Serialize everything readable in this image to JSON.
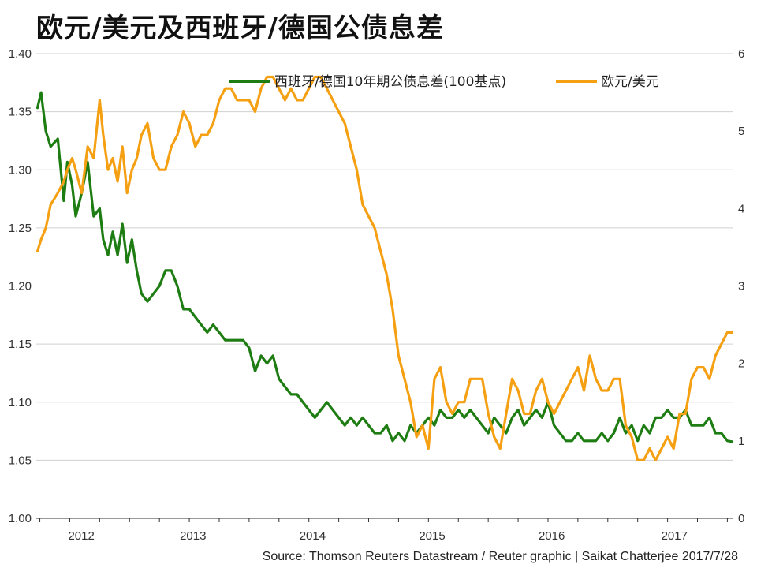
{
  "title": "欧元/美元及西班牙/德国公债息差",
  "source": "Source: Thomson Reuters Datastream / Reuter graphic | Saikat Chatterjee 2017/7/28",
  "colors": {
    "spread": "#1e7d12",
    "eurusd": "#f5a012",
    "grid": "#d0d0d0",
    "axis": "#333333"
  },
  "chart_data": {
    "type": "line",
    "title": "欧元/美元及西班牙/德国公债息差",
    "xlim": [
      2011.72,
      2017.55
    ],
    "x_tick_labels": [
      {
        "label": "2012",
        "x": 2012.0
      },
      {
        "label": "2013",
        "x": 2013.0
      },
      {
        "label": "2014",
        "x": 2014.0
      },
      {
        "label": "2015",
        "x": 2015.0
      },
      {
        "label": "2016",
        "x": 2016.0
      },
      {
        "label": "2017",
        "x": 2017.0
      }
    ],
    "y_left": {
      "range": [
        1.0,
        1.4
      ],
      "ticks": [
        "1.00",
        "1.05",
        "1.10",
        "1.15",
        "1.20",
        "1.25",
        "1.30",
        "1.35",
        "1.40"
      ]
    },
    "y_right": {
      "range": [
        0,
        6
      ],
      "ticks": [
        "0",
        "1",
        "2",
        "3",
        "4",
        "5",
        "6"
      ]
    },
    "grid": "horizontal",
    "legend_position": "top",
    "series": [
      {
        "name": "西班牙/德国10年期公债息差(100基点)",
        "axis": "right",
        "color": "#1e7d12",
        "x": [
          2011.73,
          2011.76,
          2011.8,
          2011.84,
          2011.9,
          2011.95,
          2011.98,
          2012.02,
          2012.05,
          2012.1,
          2012.15,
          2012.2,
          2012.25,
          2012.28,
          2012.32,
          2012.36,
          2012.4,
          2012.44,
          2012.48,
          2012.52,
          2012.56,
          2012.6,
          2012.65,
          2012.7,
          2012.75,
          2012.8,
          2012.85,
          2012.9,
          2012.95,
          2013.0,
          2013.05,
          2013.1,
          2013.15,
          2013.2,
          2013.25,
          2013.3,
          2013.35,
          2013.4,
          2013.45,
          2013.5,
          2013.55,
          2013.6,
          2013.65,
          2013.7,
          2013.75,
          2013.8,
          2013.85,
          2013.9,
          2013.95,
          2014.0,
          2014.05,
          2014.1,
          2014.15,
          2014.2,
          2014.25,
          2014.3,
          2014.35,
          2014.4,
          2014.45,
          2014.5,
          2014.55,
          2014.6,
          2014.65,
          2014.7,
          2014.75,
          2014.8,
          2014.85,
          2014.9,
          2014.95,
          2015.0,
          2015.05,
          2015.1,
          2015.15,
          2015.2,
          2015.25,
          2015.3,
          2015.35,
          2015.4,
          2015.45,
          2015.5,
          2015.55,
          2015.6,
          2015.65,
          2015.7,
          2015.75,
          2015.8,
          2015.85,
          2015.9,
          2015.95,
          2016.0,
          2016.05,
          2016.1,
          2016.15,
          2016.2,
          2016.25,
          2016.3,
          2016.35,
          2016.4,
          2016.45,
          2016.5,
          2016.55,
          2016.6,
          2016.65,
          2016.7,
          2016.75,
          2016.8,
          2016.85,
          2016.9,
          2016.95,
          2017.0,
          2017.05,
          2017.1,
          2017.15,
          2017.2,
          2017.25,
          2017.3,
          2017.35,
          2017.4,
          2017.45,
          2017.5,
          2017.54
        ],
        "values": [
          5.3,
          5.5,
          5.0,
          4.8,
          4.9,
          4.1,
          4.6,
          4.3,
          3.9,
          4.2,
          4.6,
          3.9,
          4.0,
          3.6,
          3.4,
          3.7,
          3.4,
          3.8,
          3.3,
          3.6,
          3.2,
          2.9,
          2.8,
          2.9,
          3.0,
          3.2,
          3.2,
          3.0,
          2.7,
          2.7,
          2.6,
          2.5,
          2.4,
          2.5,
          2.4,
          2.3,
          2.3,
          2.3,
          2.3,
          2.2,
          1.9,
          2.1,
          2.0,
          2.1,
          1.8,
          1.7,
          1.6,
          1.6,
          1.5,
          1.4,
          1.3,
          1.4,
          1.5,
          1.4,
          1.3,
          1.2,
          1.3,
          1.2,
          1.3,
          1.2,
          1.1,
          1.1,
          1.2,
          1.0,
          1.1,
          1.0,
          1.2,
          1.1,
          1.2,
          1.3,
          1.2,
          1.4,
          1.3,
          1.3,
          1.4,
          1.3,
          1.4,
          1.3,
          1.2,
          1.1,
          1.3,
          1.2,
          1.1,
          1.3,
          1.4,
          1.2,
          1.3,
          1.4,
          1.3,
          1.5,
          1.2,
          1.1,
          1.0,
          1.0,
          1.1,
          1.0,
          1.0,
          1.0,
          1.1,
          1.0,
          1.1,
          1.3,
          1.1,
          1.2,
          1.0,
          1.2,
          1.1,
          1.3,
          1.3,
          1.4,
          1.3,
          1.3,
          1.4,
          1.2,
          1.2,
          1.2,
          1.3,
          1.1,
          1.1,
          1.0,
          0.99
        ]
      },
      {
        "name": "欧元/美元",
        "axis": "left",
        "color": "#f5a012",
        "x": [
          2011.73,
          2011.76,
          2011.8,
          2011.84,
          2011.9,
          2011.95,
          2011.98,
          2012.02,
          2012.05,
          2012.1,
          2012.15,
          2012.2,
          2012.25,
          2012.28,
          2012.32,
          2012.36,
          2012.4,
          2012.44,
          2012.48,
          2012.52,
          2012.56,
          2012.6,
          2012.65,
          2012.7,
          2012.75,
          2012.8,
          2012.85,
          2012.9,
          2012.95,
          2013.0,
          2013.05,
          2013.1,
          2013.15,
          2013.2,
          2013.25,
          2013.3,
          2013.35,
          2013.4,
          2013.45,
          2013.5,
          2013.55,
          2013.6,
          2013.65,
          2013.7,
          2013.75,
          2013.8,
          2013.85,
          2013.9,
          2013.95,
          2014.0,
          2014.05,
          2014.1,
          2014.15,
          2014.2,
          2014.25,
          2014.3,
          2014.35,
          2014.4,
          2014.45,
          2014.5,
          2014.55,
          2014.6,
          2014.65,
          2014.7,
          2014.75,
          2014.8,
          2014.85,
          2014.9,
          2014.95,
          2015.0,
          2015.05,
          2015.1,
          2015.15,
          2015.2,
          2015.25,
          2015.3,
          2015.35,
          2015.4,
          2015.45,
          2015.5,
          2015.55,
          2015.6,
          2015.65,
          2015.7,
          2015.75,
          2015.8,
          2015.85,
          2015.9,
          2015.95,
          2016.0,
          2016.05,
          2016.1,
          2016.15,
          2016.2,
          2016.25,
          2016.3,
          2016.35,
          2016.4,
          2016.45,
          2016.5,
          2016.55,
          2016.6,
          2016.65,
          2016.7,
          2016.75,
          2016.8,
          2016.85,
          2016.9,
          2016.95,
          2017.0,
          2017.05,
          2017.1,
          2017.15,
          2017.2,
          2017.25,
          2017.3,
          2017.35,
          2017.4,
          2017.45,
          2017.5,
          2017.54
        ],
        "values": [
          1.23,
          1.24,
          1.25,
          1.27,
          1.28,
          1.29,
          1.3,
          1.31,
          1.3,
          1.28,
          1.32,
          1.31,
          1.36,
          1.33,
          1.3,
          1.31,
          1.29,
          1.32,
          1.28,
          1.3,
          1.31,
          1.33,
          1.34,
          1.31,
          1.3,
          1.3,
          1.32,
          1.33,
          1.35,
          1.34,
          1.32,
          1.33,
          1.33,
          1.34,
          1.36,
          1.37,
          1.37,
          1.36,
          1.36,
          1.36,
          1.35,
          1.37,
          1.38,
          1.38,
          1.37,
          1.36,
          1.37,
          1.36,
          1.36,
          1.37,
          1.38,
          1.38,
          1.37,
          1.36,
          1.35,
          1.34,
          1.32,
          1.3,
          1.27,
          1.26,
          1.25,
          1.23,
          1.21,
          1.18,
          1.14,
          1.12,
          1.1,
          1.07,
          1.08,
          1.06,
          1.12,
          1.13,
          1.1,
          1.09,
          1.1,
          1.1,
          1.12,
          1.12,
          1.12,
          1.09,
          1.07,
          1.06,
          1.09,
          1.12,
          1.11,
          1.09,
          1.09,
          1.11,
          1.12,
          1.1,
          1.09,
          1.1,
          1.11,
          1.12,
          1.13,
          1.11,
          1.14,
          1.12,
          1.11,
          1.11,
          1.12,
          1.12,
          1.08,
          1.07,
          1.05,
          1.05,
          1.06,
          1.05,
          1.06,
          1.07,
          1.06,
          1.09,
          1.09,
          1.12,
          1.13,
          1.13,
          1.12,
          1.14,
          1.15,
          1.16,
          1.16
        ]
      }
    ]
  }
}
